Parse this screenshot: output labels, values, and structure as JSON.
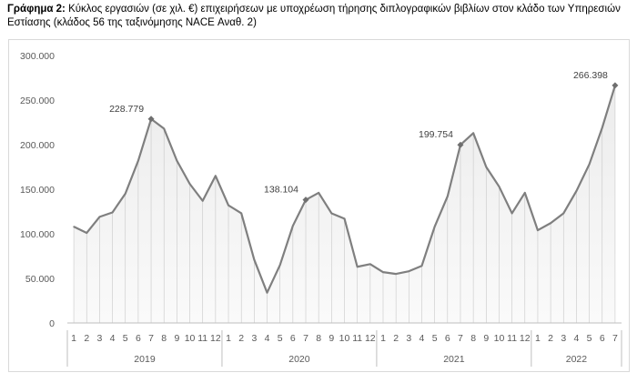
{
  "caption": {
    "bold": "Γράφημα 2:",
    "text": " Κύκλος εργασιών (σε χιλ. €) επιχειρήσεων με υποχρέωση τήρησης διπλογραφικών βιβλίων στον κλάδο των Υπηρεσιών Εστίασης (κλάδος 56 της ταξινόμησης NACE Αναθ. 2)"
  },
  "chart_data": {
    "type": "line",
    "title": "",
    "xlabel": "",
    "ylabel": "",
    "ylim": [
      0,
      300000
    ],
    "yticks": [
      0,
      50000,
      100000,
      150000,
      200000,
      250000,
      300000
    ],
    "ytick_labels": [
      "0",
      "50.000",
      "100.000",
      "150.000",
      "200.000",
      "250.000",
      "300.000"
    ],
    "grid": false,
    "legend": "none",
    "line_color": "#7f7f7f",
    "month_labels": [
      "1",
      "2",
      "3",
      "4",
      "5",
      "6",
      "7",
      "8",
      "9",
      "10",
      "11",
      "12",
      "1",
      "2",
      "3",
      "4",
      "5",
      "6",
      "7",
      "8",
      "9",
      "10",
      "11",
      "12",
      "1",
      "2",
      "3",
      "4",
      "5",
      "6",
      "7",
      "8",
      "9",
      "10",
      "11",
      "12",
      "1",
      "2",
      "3",
      "4",
      "5",
      "6",
      "7"
    ],
    "year_groups": [
      {
        "label": "2019",
        "count": 12
      },
      {
        "label": "2020",
        "count": 12
      },
      {
        "label": "2021",
        "count": 12
      },
      {
        "label": "2022",
        "count": 7
      }
    ],
    "values": [
      108000,
      101000,
      119000,
      124000,
      145000,
      182000,
      228779,
      218000,
      182000,
      156000,
      137000,
      165000,
      132000,
      123000,
      71000,
      34000,
      65000,
      109000,
      138104,
      146000,
      123000,
      117000,
      63000,
      66000,
      57000,
      55000,
      58000,
      64000,
      108000,
      142000,
      199754,
      213000,
      175000,
      153000,
      123000,
      146000,
      104000,
      112000,
      123000,
      148000,
      178000,
      219000,
      266398
    ],
    "annotations": [
      {
        "index": 6,
        "label": "228.779"
      },
      {
        "index": 18,
        "label": "138.104"
      },
      {
        "index": 30,
        "label": "199.754"
      },
      {
        "index": 42,
        "label": "266.398"
      }
    ]
  }
}
